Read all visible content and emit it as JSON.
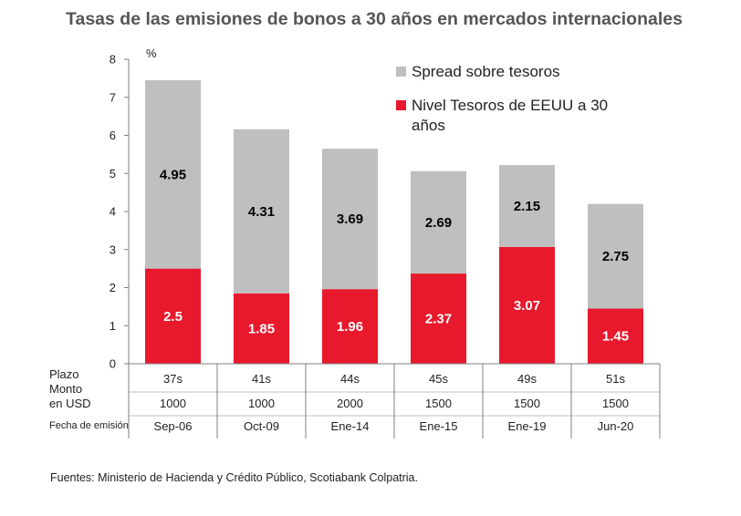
{
  "chart_data": {
    "type": "bar",
    "stacked": true,
    "title": "Tasas de las emisiones de bonos a 30 años en mercados internacionales",
    "ylabel": "%",
    "ylim": [
      0,
      8
    ],
    "yticks": [
      "0",
      "1",
      "2",
      "3",
      "4",
      "5",
      "6",
      "7",
      "8"
    ],
    "grid": false,
    "legend_position": "top-right",
    "categories": [
      "Sep-06",
      "Oct-09",
      "Ene-14",
      "Ene-15",
      "Ene-19",
      "Jun-20"
    ],
    "series": [
      {
        "name": "Nivel Tesoros de EEUU a 30 años",
        "color": "#e8192c",
        "values": [
          2.5,
          1.85,
          1.96,
          2.37,
          3.07,
          1.45
        ],
        "labels": [
          "2.5",
          "1.85",
          "1.96",
          "2.37",
          "3.07",
          "1.45"
        ]
      },
      {
        "name": "Spread sobre tesoros",
        "color": "#bfbfbf",
        "values": [
          4.95,
          4.31,
          3.69,
          2.69,
          2.15,
          2.75
        ],
        "labels": [
          "4.95",
          "4.31",
          "3.69",
          "2.69",
          "2.15",
          "2.75"
        ]
      }
    ],
    "table": {
      "row_headers": {
        "plazo": "Plazo",
        "monto_1": "Monto",
        "monto_2": "en USD",
        "fecha": "Fecha de emisión"
      },
      "plazo": [
        "37s",
        "41s",
        "44s",
        "45s",
        "49s",
        "51s"
      ],
      "monto": [
        "1000",
        "1000",
        "2000",
        "1500",
        "1500",
        "1500"
      ],
      "fecha": [
        "Sep-06",
        "Oct-09",
        "Ene-14",
        "Ene-15",
        "Ene-19",
        "Jun-20"
      ]
    }
  },
  "source": "Fuentes: Ministerio de Hacienda y Crédito Público, Scotiabank Colpatria.",
  "legend_lines": {
    "spread": [
      "Spread sobre tesoros"
    ],
    "nivel": [
      "Nivel Tesoros de EEUU a 30",
      "años"
    ]
  }
}
